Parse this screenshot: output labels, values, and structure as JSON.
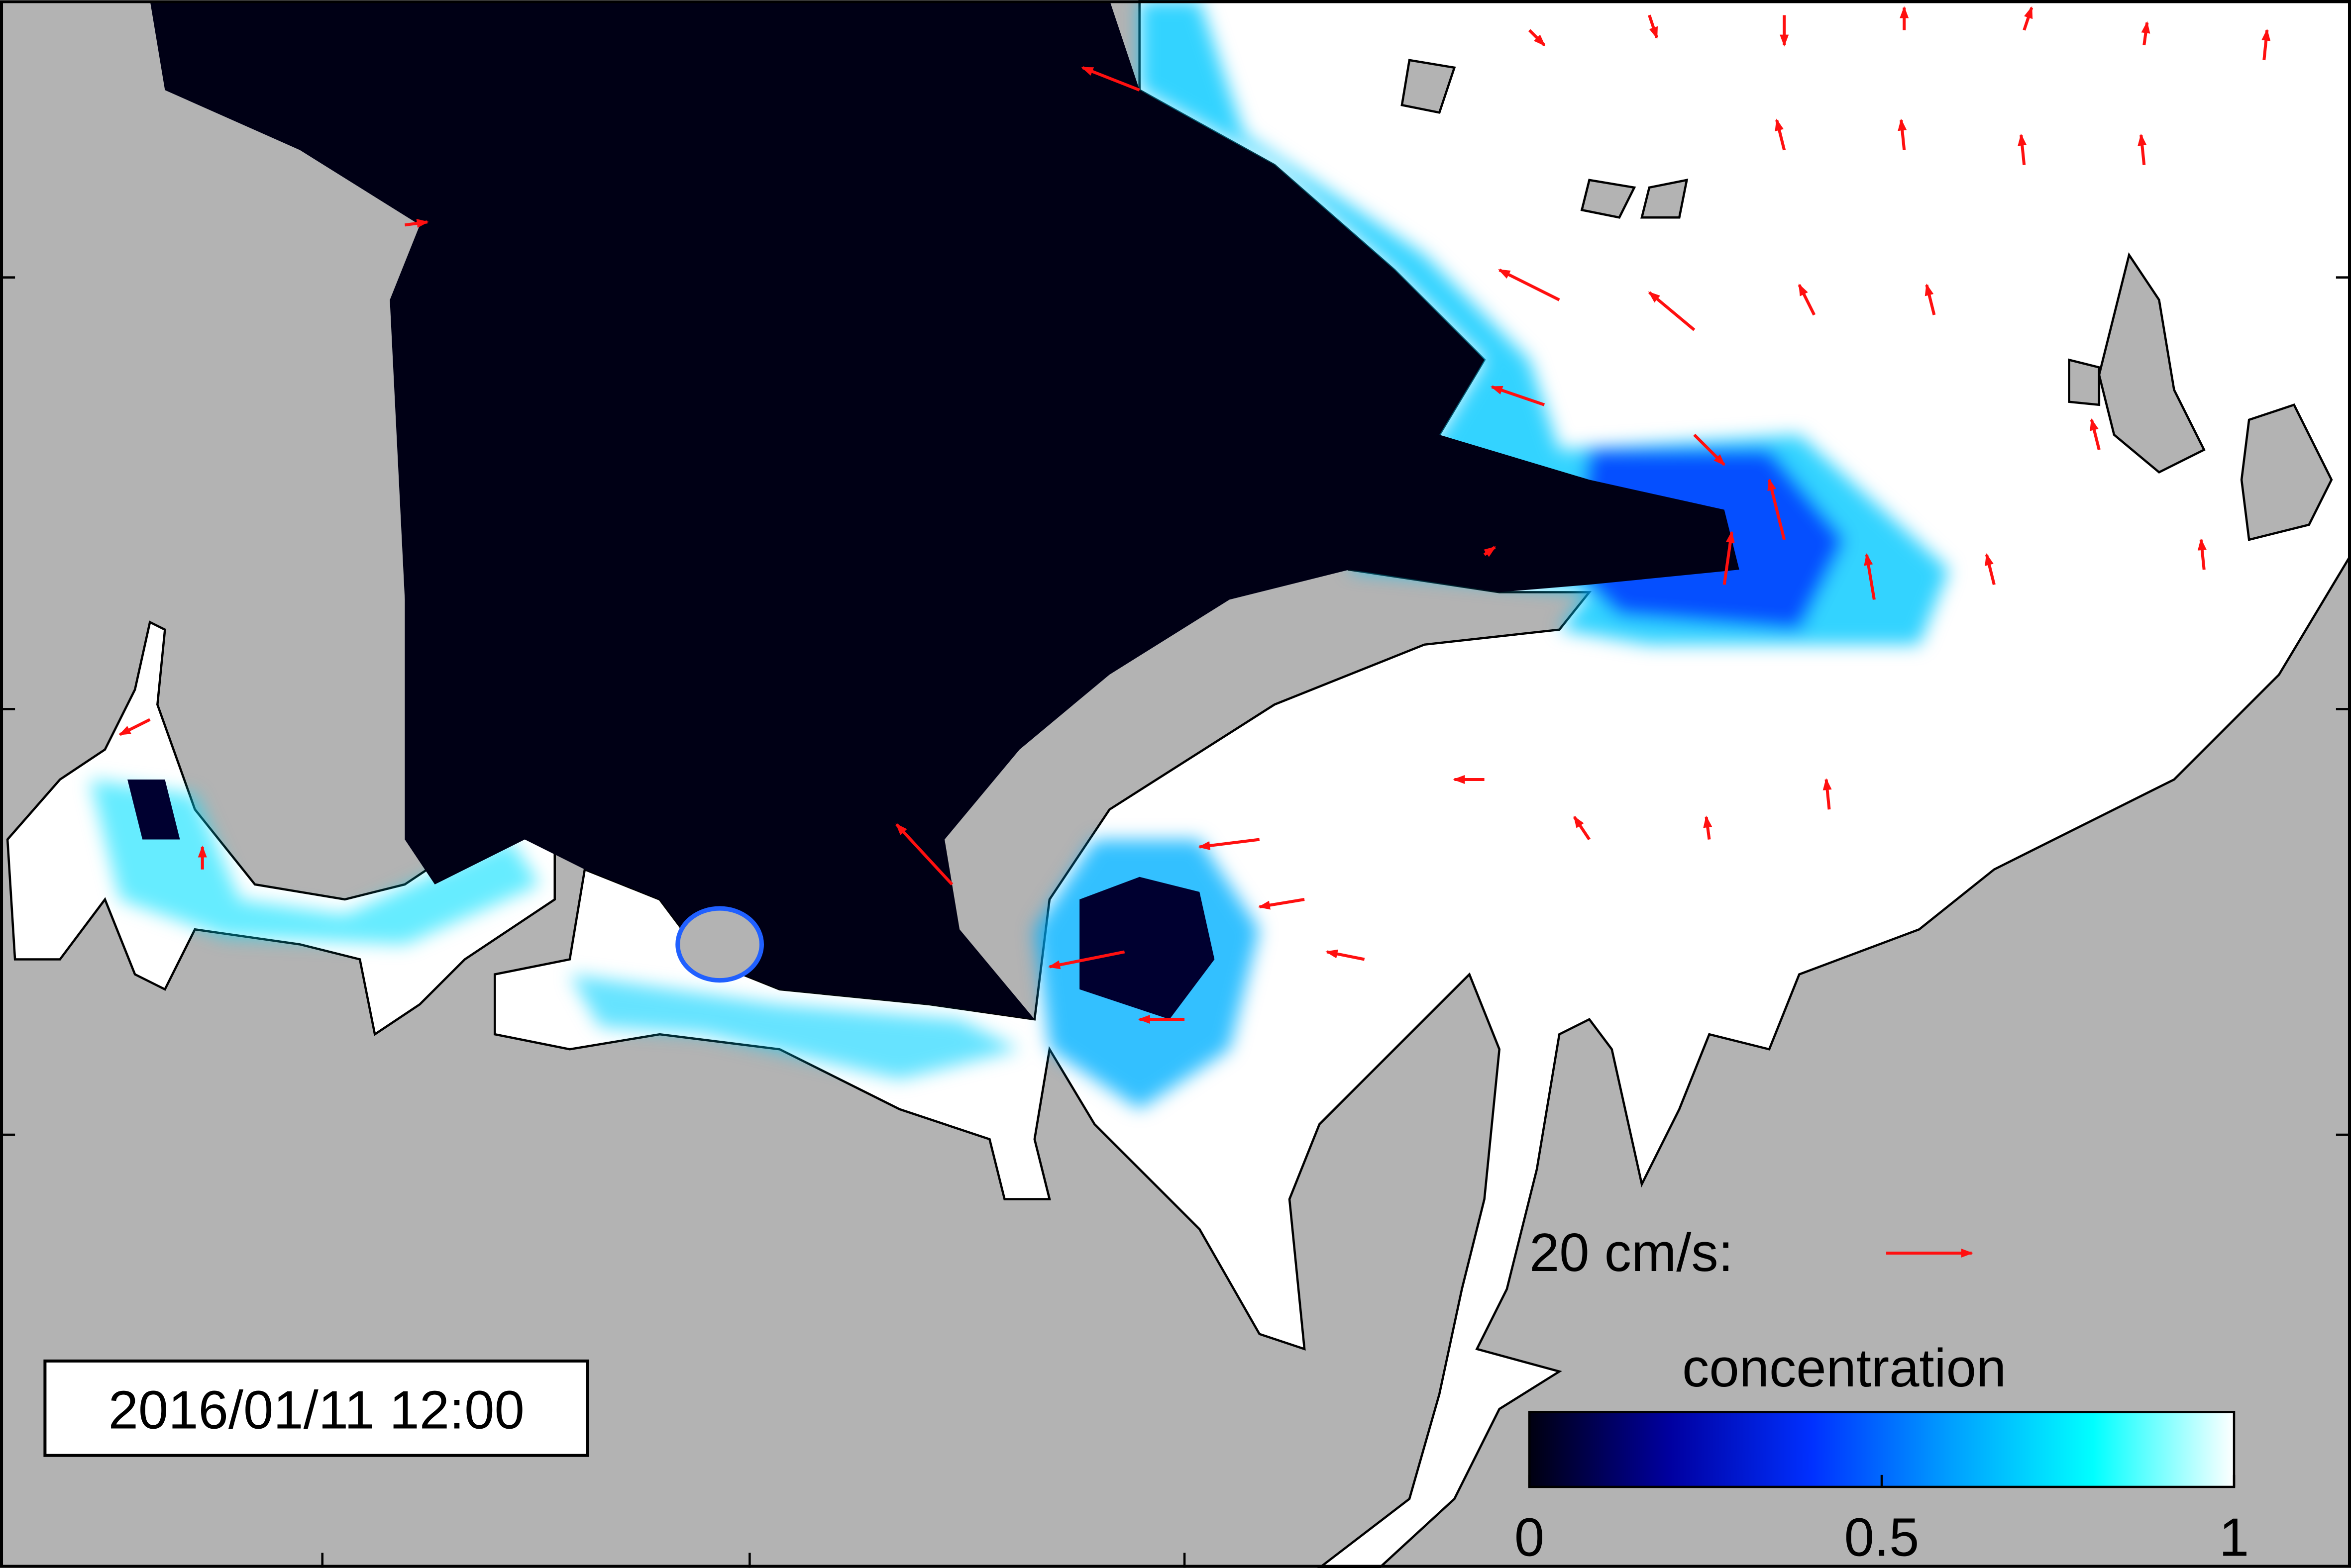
{
  "map": {
    "timestamp": "2016/01/11 12:00",
    "scale_label": "20 cm/s:",
    "colorbar": {
      "label": "concentration",
      "ticks": [
        0,
        0.5,
        1
      ],
      "range": [
        0,
        1
      ],
      "colors": [
        "#000010",
        "#0000a0",
        "#0030ff",
        "#00a0ff",
        "#00ffff",
        "#ffffff"
      ]
    }
  }
}
